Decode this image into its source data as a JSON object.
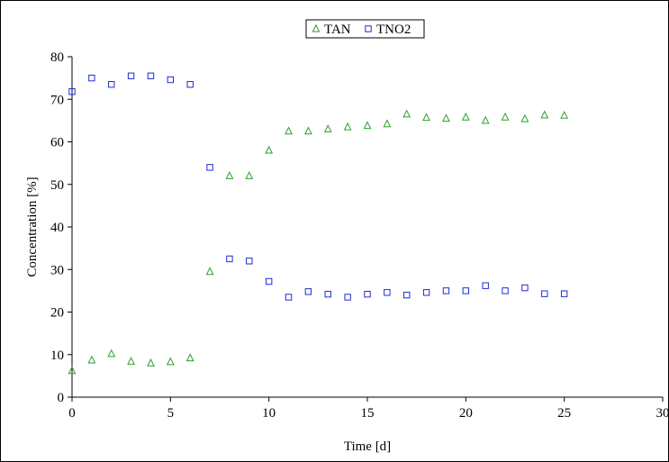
{
  "chart_data": {
    "type": "scatter",
    "title": "",
    "xlabel": "Time [d]",
    "ylabel": "Concentration [%]",
    "xlim": [
      0,
      30
    ],
    "ylim": [
      0,
      80
    ],
    "xticks": [
      0,
      5,
      10,
      15,
      20,
      25,
      30
    ],
    "yticks": [
      0,
      10,
      20,
      30,
      40,
      50,
      60,
      70,
      80
    ],
    "grid": false,
    "legend_position": "top-center",
    "series": [
      {
        "name": "TAN",
        "marker": "triangle",
        "color": "#2e9e2e",
        "x": [
          0,
          1,
          2,
          3,
          4,
          5,
          6,
          7,
          8,
          9,
          10,
          11,
          12,
          13,
          14,
          15,
          16,
          17,
          18,
          19,
          20,
          21,
          22,
          23,
          24,
          25
        ],
        "y": [
          6.2,
          8.7,
          10.2,
          8.4,
          8.0,
          8.3,
          9.2,
          29.5,
          52.0,
          52.0,
          58.0,
          62.5,
          62.5,
          63.0,
          63.5,
          63.8,
          64.2,
          66.5,
          65.7,
          65.5,
          65.8,
          65.0,
          65.8,
          65.4,
          66.3,
          66.2
        ]
      },
      {
        "name": "TNO2",
        "marker": "square",
        "color": "#1f2bd6",
        "x": [
          0,
          1,
          2,
          3,
          4,
          5,
          6,
          7,
          8,
          9,
          10,
          11,
          12,
          13,
          14,
          15,
          16,
          17,
          18,
          19,
          20,
          21,
          22,
          23,
          24,
          25
        ],
        "y": [
          71.8,
          75.0,
          73.5,
          75.5,
          75.5,
          74.6,
          73.5,
          54.0,
          32.5,
          32.0,
          27.2,
          23.5,
          24.8,
          24.2,
          23.5,
          24.2,
          24.6,
          24.0,
          24.6,
          25.0,
          25.0,
          26.2,
          25.0,
          25.7,
          24.3,
          24.3
        ]
      }
    ]
  }
}
